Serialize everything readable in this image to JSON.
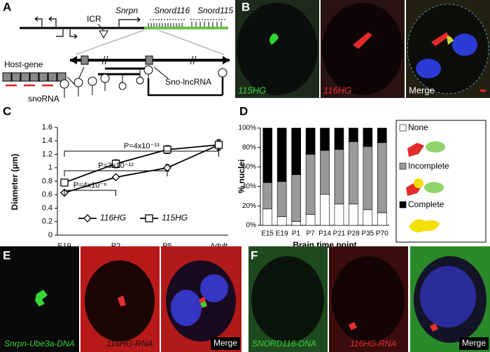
{
  "panels": {
    "A": {
      "letter": "A",
      "labels": {
        "icr": "ICR",
        "snrpn": "Snrpn",
        "snord116": "Snord116",
        "snord115": "Snord115",
        "host_gene": "Host-gene",
        "snorna": "snoRNA",
        "sno_lncrna": "Sno-lncRNA"
      }
    },
    "B": {
      "letter": "B",
      "images": [
        "115HG",
        "116HG",
        "Merge"
      ]
    },
    "C": {
      "letter": "C"
    },
    "D": {
      "letter": "D"
    },
    "E": {
      "letter": "E",
      "images": [
        "Snrpn-Ube3a-DNA",
        "116HG-RNA",
        "Merge"
      ]
    },
    "F": {
      "letter": "F",
      "images": [
        "SNORD116-DNA",
        "116HG-RNA",
        "Merge"
      ]
    }
  },
  "chart_data": [
    {
      "type": "line",
      "y_label": "Diameter (μm)",
      "categories": [
        "E19",
        "P2",
        "P5",
        "Adult"
      ],
      "series": [
        {
          "name": "116HG",
          "marker": "diamond",
          "color": "#000000",
          "values": [
            0.63,
            0.86,
            1.0,
            1.34
          ],
          "errors": [
            0.02,
            0.03,
            0.05,
            0.07
          ]
        },
        {
          "name": "115HG",
          "marker": "square",
          "color": "#000000",
          "values": [
            0.78,
            1.06,
            1.27,
            1.34
          ],
          "errors": [
            0.03,
            0.06,
            0.06,
            0.08
          ]
        }
      ],
      "annotations": [
        "P=4x10⁻⁶",
        "P=3x10⁻¹²",
        "P=4x10⁻¹³"
      ],
      "ylim": [
        0,
        1.6
      ],
      "yticks": [
        0,
        0.2,
        0.4,
        0.6,
        0.8,
        1,
        1.2,
        1.4,
        1.6
      ],
      "legend": "bottom"
    },
    {
      "type": "bar",
      "stacked": true,
      "y_label": "% nuclei",
      "x_label": "Brain time point",
      "categories": [
        "E15",
        "E19",
        "P1",
        "P7",
        "P14",
        "P21",
        "P28",
        "P35",
        "P70"
      ],
      "series": [
        {
          "name": "None",
          "color": "#ffffff",
          "values": [
            17,
            9,
            4,
            11,
            32,
            22,
            22,
            16,
            13
          ]
        },
        {
          "name": "Incomplete",
          "color": "#999999",
          "values": [
            27,
            36,
            48,
            62,
            45,
            56,
            64,
            65,
            72
          ]
        },
        {
          "name": "Complete",
          "color": "#000000",
          "values": [
            56,
            55,
            48,
            27,
            23,
            22,
            14,
            19,
            15
          ]
        }
      ],
      "ylim": [
        0,
        100
      ],
      "yticks": [
        {
          "value": 0,
          "label": "0%"
        },
        {
          "value": 20,
          "label": "20%"
        },
        {
          "value": 40,
          "label": "40%"
        },
        {
          "value": 60,
          "label": "60%"
        },
        {
          "value": 80,
          "label": "80%"
        },
        {
          "value": 100,
          "label": "100%"
        }
      ],
      "legend": "right"
    }
  ]
}
